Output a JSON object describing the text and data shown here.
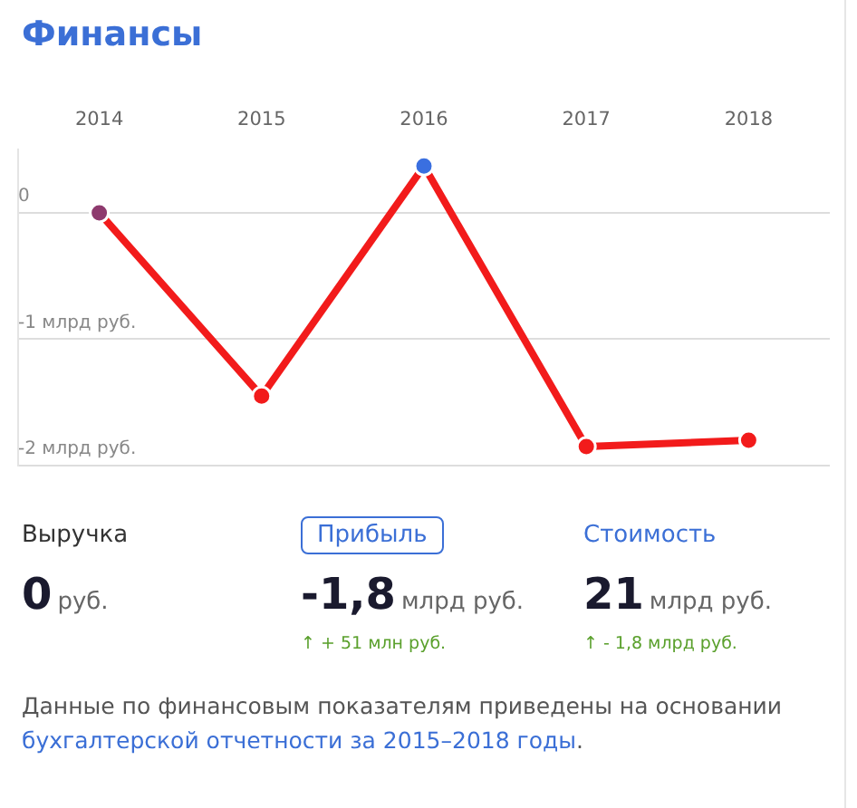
{
  "chart_data": {
    "type": "line",
    "title": "Финансы",
    "categories": [
      "2014",
      "2015",
      "2016",
      "2017",
      "2018"
    ],
    "series": [
      {
        "color": "#f21b1b",
        "colors": [
          "#8e3a6e",
          "#f21b1b",
          "#3a6fe0",
          "#f21b1b",
          "#f21b1b"
        ],
        "values": [
          0,
          -1.45,
          0.37,
          -1.85,
          -1.8
        ]
      }
    ],
    "ylim": [
      -2,
      0.5
    ],
    "yticks": [
      {
        "value": 0,
        "label": "0"
      },
      {
        "value": -1,
        "label": "-1 млрд руб."
      },
      {
        "value": -2,
        "label": "-2 млрд руб."
      }
    ],
    "grid": "y",
    "marker": "circle",
    "legend": false,
    "annotations": [
      "Выручка",
      "0",
      "руб.",
      "Прибыль",
      "-1,8",
      "млрд руб.",
      "↑ + 51 млн руб.",
      "Стоимость",
      "21",
      "млрд руб.",
      "↑ - 1,8 млрд руб.",
      "Данные по финансовым показателям приведены на основании",
      "бухгалтерской отчетности за 2015–2018 годы",
      "."
    ]
  }
}
